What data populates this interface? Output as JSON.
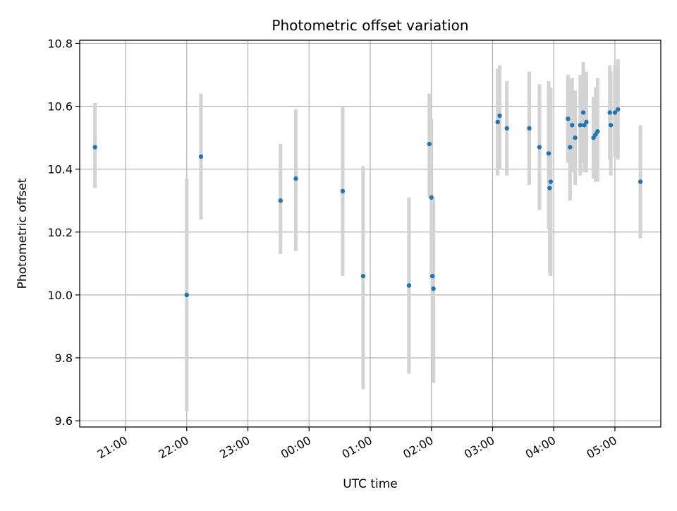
{
  "chart_data": {
    "type": "scatter",
    "title": "Photometric offset variation",
    "xlabel": "UTC time",
    "ylabel": "Photometric offset",
    "x_axis": {
      "kind": "time",
      "range": [
        "20:15",
        "05:45"
      ],
      "tick_labels": [
        "21:00",
        "22:00",
        "23:00",
        "00:00",
        "01:00",
        "02:00",
        "03:00",
        "04:00",
        "05:00"
      ],
      "tick_positions": [
        "21:00",
        "22:00",
        "23:00",
        "00:00",
        "01:00",
        "02:00",
        "03:00",
        "04:00",
        "05:00"
      ],
      "tick_rotation_deg": 30
    },
    "y_axis": {
      "range": [
        9.58,
        10.81
      ],
      "ticks": [
        9.6,
        9.8,
        10.0,
        10.2,
        10.4,
        10.6,
        10.8
      ],
      "tick_labels": [
        "9.6",
        "9.8",
        "10.0",
        "10.2",
        "10.4",
        "10.6",
        "10.8"
      ]
    },
    "grid": true,
    "marker_color": "#1f77b4",
    "errorbar_color": "#d3d3d3",
    "points": [
      {
        "t": "20:30",
        "y": 10.47,
        "lo": 10.34,
        "hi": 10.61
      },
      {
        "t": "22:00",
        "y": 10.0,
        "lo": 9.63,
        "hi": 10.37
      },
      {
        "t": "22:14",
        "y": 10.44,
        "lo": 10.24,
        "hi": 10.64
      },
      {
        "t": "23:32",
        "y": 10.3,
        "lo": 10.13,
        "hi": 10.48
      },
      {
        "t": "23:47",
        "y": 10.37,
        "lo": 10.14,
        "hi": 10.59
      },
      {
        "t": "00:33",
        "y": 10.33,
        "lo": 10.06,
        "hi": 10.6
      },
      {
        "t": "00:53",
        "y": 10.06,
        "lo": 9.7,
        "hi": 10.41
      },
      {
        "t": "01:38",
        "y": 10.03,
        "lo": 9.75,
        "hi": 10.31
      },
      {
        "t": "01:58",
        "y": 10.48,
        "lo": 10.31,
        "hi": 10.64
      },
      {
        "t": "02:00",
        "y": 10.31,
        "lo": 10.05,
        "hi": 10.56
      },
      {
        "t": "02:01",
        "y": 10.06,
        "lo": 9.8,
        "hi": 10.3
      },
      {
        "t": "02:02",
        "y": 10.02,
        "lo": 9.72,
        "hi": 10.31
      },
      {
        "t": "03:05",
        "y": 10.55,
        "lo": 10.38,
        "hi": 10.72
      },
      {
        "t": "03:07",
        "y": 10.57,
        "lo": 10.4,
        "hi": 10.73
      },
      {
        "t": "03:14",
        "y": 10.53,
        "lo": 10.38,
        "hi": 10.68
      },
      {
        "t": "03:36",
        "y": 10.53,
        "lo": 10.35,
        "hi": 10.71
      },
      {
        "t": "03:46",
        "y": 10.47,
        "lo": 10.27,
        "hi": 10.67
      },
      {
        "t": "03:55",
        "y": 10.45,
        "lo": 10.21,
        "hi": 10.68
      },
      {
        "t": "03:56",
        "y": 10.34,
        "lo": 10.07,
        "hi": 10.62
      },
      {
        "t": "03:57",
        "y": 10.36,
        "lo": 10.06,
        "hi": 10.66
      },
      {
        "t": "04:14",
        "y": 10.56,
        "lo": 10.42,
        "hi": 10.7
      },
      {
        "t": "04:16",
        "y": 10.47,
        "lo": 10.3,
        "hi": 10.68
      },
      {
        "t": "04:18",
        "y": 10.54,
        "lo": 10.39,
        "hi": 10.69
      },
      {
        "t": "04:21",
        "y": 10.5,
        "lo": 10.35,
        "hi": 10.65
      },
      {
        "t": "04:26",
        "y": 10.54,
        "lo": 10.38,
        "hi": 10.7
      },
      {
        "t": "04:29",
        "y": 10.58,
        "lo": 10.42,
        "hi": 10.74
      },
      {
        "t": "04:30",
        "y": 10.54,
        "lo": 10.39,
        "hi": 10.7
      },
      {
        "t": "04:32",
        "y": 10.55,
        "lo": 10.39,
        "hi": 10.71
      },
      {
        "t": "04:39",
        "y": 10.5,
        "lo": 10.37,
        "hi": 10.63
      },
      {
        "t": "04:41",
        "y": 10.51,
        "lo": 10.36,
        "hi": 10.66
      },
      {
        "t": "04:43",
        "y": 10.52,
        "lo": 10.36,
        "hi": 10.69
      },
      {
        "t": "04:55",
        "y": 10.58,
        "lo": 10.43,
        "hi": 10.73
      },
      {
        "t": "04:56",
        "y": 10.54,
        "lo": 10.38,
        "hi": 10.71
      },
      {
        "t": "05:00",
        "y": 10.58,
        "lo": 10.44,
        "hi": 10.73
      },
      {
        "t": "05:03",
        "y": 10.59,
        "lo": 10.43,
        "hi": 10.75
      },
      {
        "t": "05:25",
        "y": 10.36,
        "lo": 10.18,
        "hi": 10.54
      }
    ]
  }
}
